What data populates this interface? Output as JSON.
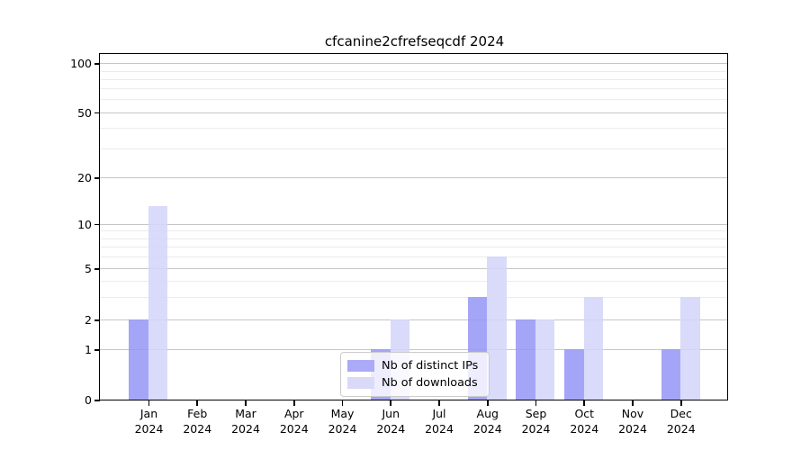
{
  "title": "cfcanine2cfrefseqcdf 2024",
  "chart_data": {
    "type": "bar",
    "title": "cfcanine2cfrefseqcdf 2024",
    "xlabel": "",
    "ylabel": "",
    "yscale": "symlog",
    "ylim": [
      0,
      115
    ],
    "grid": true,
    "legend_position": "lower center inside",
    "categories": [
      {
        "month": "Jan",
        "year": "2024"
      },
      {
        "month": "Feb",
        "year": "2024"
      },
      {
        "month": "Mar",
        "year": "2024"
      },
      {
        "month": "Apr",
        "year": "2024"
      },
      {
        "month": "May",
        "year": "2024"
      },
      {
        "month": "Jun",
        "year": "2024"
      },
      {
        "month": "Jul",
        "year": "2024"
      },
      {
        "month": "Aug",
        "year": "2024"
      },
      {
        "month": "Sep",
        "year": "2024"
      },
      {
        "month": "Oct",
        "year": "2024"
      },
      {
        "month": "Nov",
        "year": "2024"
      },
      {
        "month": "Dec",
        "year": "2024"
      }
    ],
    "series": [
      {
        "name": "Nb of distinct IPs",
        "color": "#aaaaf6",
        "values": [
          2,
          0,
          0,
          0,
          0,
          1,
          0,
          3,
          2,
          1,
          0,
          1
        ]
      },
      {
        "name": "Nb of downloads",
        "color": "#dadaf8",
        "values": [
          13,
          0,
          0,
          0,
          0,
          2,
          0,
          6,
          2,
          3,
          0,
          3
        ]
      }
    ],
    "yticks": [
      0,
      1,
      2,
      5,
      10,
      20,
      50,
      100
    ],
    "yticks_minor": [
      3,
      4,
      6,
      7,
      8,
      9,
      30,
      40,
      60,
      70,
      80,
      90
    ]
  }
}
